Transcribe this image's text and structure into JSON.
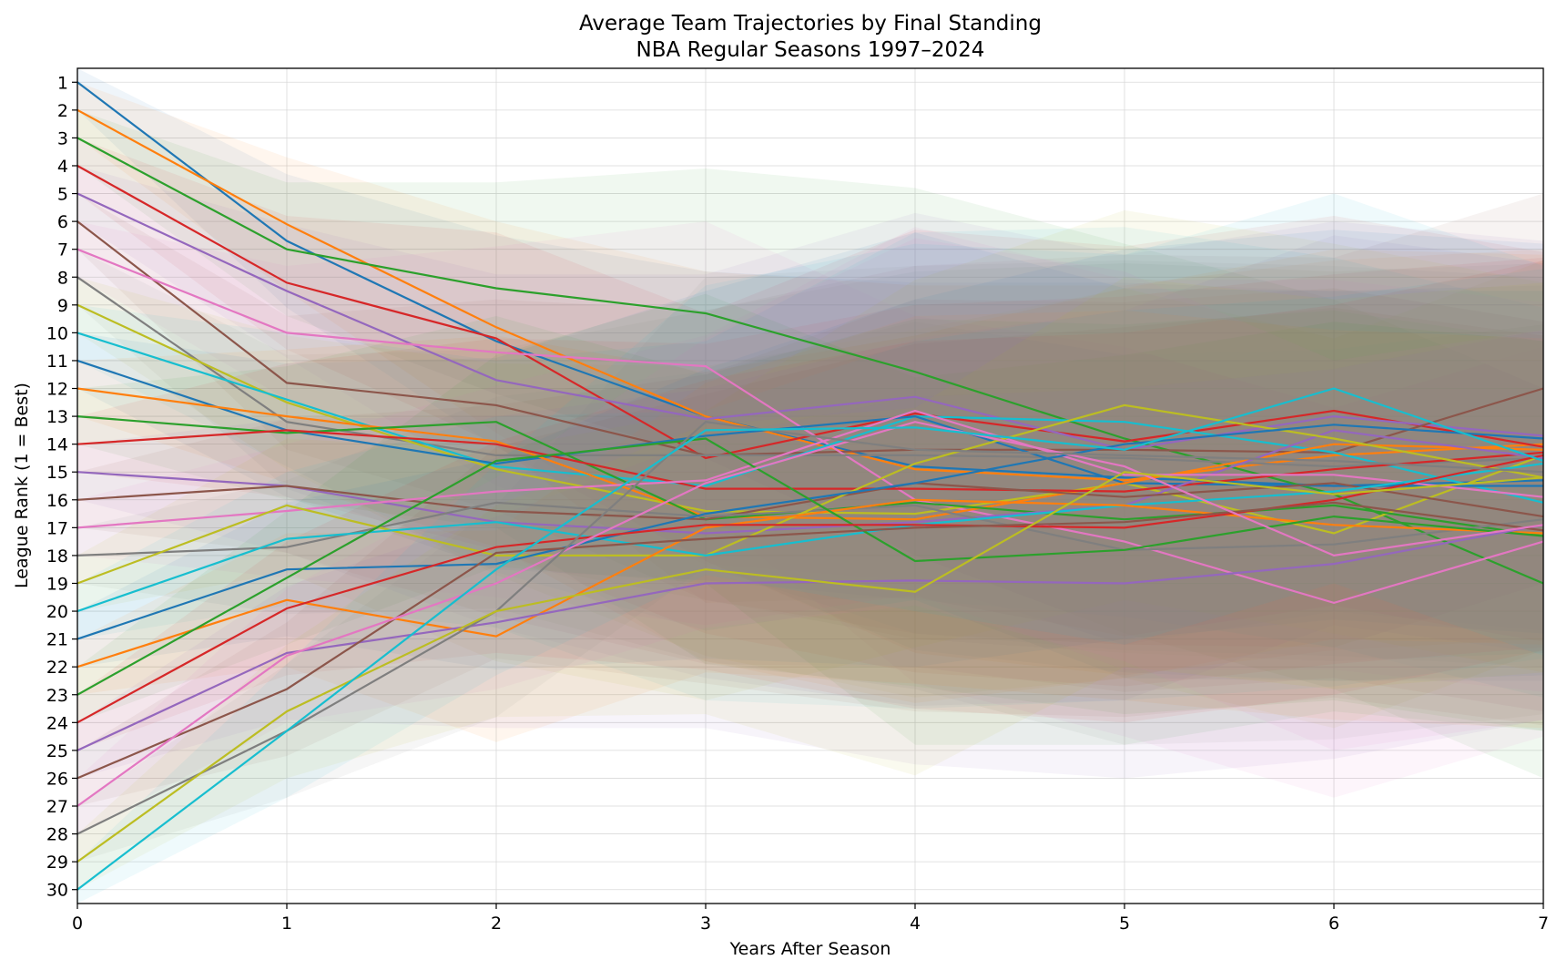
{
  "chart_data": {
    "type": "line",
    "title": "Average Team Trajectories by Final Standing",
    "subtitle": "NBA Regular Seasons 1997–2024",
    "xlabel": "Years After Season",
    "ylabel": "League Rank (1 = Best)",
    "xlim": [
      0,
      7
    ],
    "ylim": [
      30.5,
      0.5
    ],
    "y_inverted": true,
    "grid": true,
    "x": [
      0,
      1,
      2,
      3,
      4,
      5,
      6,
      7
    ],
    "x_ticks": [
      "0",
      "1",
      "2",
      "3",
      "4",
      "5",
      "6",
      "7"
    ],
    "y_ticks": [
      "1",
      "2",
      "3",
      "4",
      "5",
      "6",
      "7",
      "8",
      "9",
      "10",
      "11",
      "12",
      "13",
      "14",
      "15",
      "16",
      "17",
      "18",
      "19",
      "20",
      "21",
      "22",
      "23",
      "24",
      "25",
      "26",
      "27",
      "28",
      "29",
      "30"
    ],
    "band_opacity": 0.07,
    "series": [
      {
        "color": "#1f77b4",
        "values": [
          1,
          6.7,
          10.3,
          13.0,
          14.8,
          15.2,
          15.5,
          15.3
        ]
      },
      {
        "color": "#ff7f0e",
        "values": [
          2,
          6.1,
          9.8,
          13.0,
          14.9,
          15.3,
          14.4,
          14.0
        ]
      },
      {
        "color": "#2ca02c",
        "values": [
          3,
          7.0,
          8.4,
          9.3,
          11.4,
          13.8,
          15.8,
          19.0
        ]
      },
      {
        "color": "#d62728",
        "values": [
          4,
          8.2,
          10.2,
          14.5,
          12.9,
          13.9,
          12.8,
          14.1
        ]
      },
      {
        "color": "#9467bd",
        "values": [
          5,
          8.5,
          11.7,
          13.1,
          12.3,
          14.2,
          13.0,
          13.7
        ]
      },
      {
        "color": "#8c564b",
        "values": [
          6,
          11.8,
          12.6,
          14.4,
          14.2,
          14.2,
          14.3,
          12.0
        ]
      },
      {
        "color": "#e377c2",
        "values": [
          7,
          10.0,
          10.7,
          11.2,
          16.0,
          17.5,
          19.7,
          17.5
        ]
      },
      {
        "color": "#7f7f7f",
        "values": [
          8,
          13.2,
          14.4,
          14.4,
          14.4,
          14.5,
          14.8,
          14.5
        ]
      },
      {
        "color": "#bcbd22",
        "values": [
          9,
          12.5,
          14.9,
          16.4,
          16.5,
          15.4,
          17.2,
          14.4
        ]
      },
      {
        "color": "#17becf",
        "values": [
          10,
          12.4,
          14.8,
          15.5,
          13.0,
          13.2,
          14.3,
          16.1
        ]
      },
      {
        "color": "#1f77b4",
        "values": [
          11,
          13.5,
          14.7,
          13.7,
          13.0,
          15.4,
          15.5,
          15.5
        ]
      },
      {
        "color": "#ff7f0e",
        "values": [
          12,
          13.0,
          13.9,
          16.6,
          16.7,
          15.4,
          14.0,
          14.2
        ]
      },
      {
        "color": "#2ca02c",
        "values": [
          13,
          13.6,
          13.2,
          16.7,
          16.1,
          16.7,
          16.2,
          17.3
        ]
      },
      {
        "color": "#d62728",
        "values": [
          14,
          13.5,
          14.0,
          15.6,
          15.6,
          15.7,
          14.9,
          14.3
        ]
      },
      {
        "color": "#9467bd",
        "values": [
          15,
          15.5,
          16.8,
          17.2,
          16.8,
          16.2,
          13.5,
          14.5
        ]
      },
      {
        "color": "#8c564b",
        "values": [
          16,
          15.5,
          16.4,
          16.7,
          15.4,
          15.9,
          15.4,
          16.6
        ]
      },
      {
        "color": "#e377c2",
        "values": [
          17,
          16.4,
          15.7,
          15.3,
          12.8,
          15.1,
          15.1,
          15.9
        ]
      },
      {
        "color": "#7f7f7f",
        "values": [
          18,
          17.7,
          16.1,
          16.6,
          16.2,
          17.8,
          17.6,
          16.7
        ]
      },
      {
        "color": "#bcbd22",
        "values": [
          19,
          16.2,
          18.0,
          18.0,
          14.7,
          12.6,
          13.8,
          15.2
        ]
      },
      {
        "color": "#17becf",
        "values": [
          20,
          17.4,
          16.8,
          18.0,
          16.9,
          16.2,
          15.7,
          14.7
        ]
      },
      {
        "color": "#1f77b4",
        "values": [
          21,
          18.5,
          18.3,
          16.5,
          15.4,
          14.0,
          13.3,
          13.8
        ]
      },
      {
        "color": "#ff7f0e",
        "values": [
          22,
          19.6,
          20.9,
          17.0,
          16.0,
          16.2,
          16.9,
          17.2
        ]
      },
      {
        "color": "#2ca02c",
        "values": [
          23,
          18.8,
          14.6,
          13.8,
          18.2,
          17.8,
          16.6,
          17.3
        ]
      },
      {
        "color": "#d62728",
        "values": [
          24,
          19.9,
          17.7,
          16.9,
          16.9,
          17.0,
          16.0,
          14.4
        ]
      },
      {
        "color": "#9467bd",
        "values": [
          25,
          21.5,
          20.4,
          19.0,
          18.9,
          19.0,
          18.3,
          16.9
        ]
      },
      {
        "color": "#8c564b",
        "values": [
          26,
          22.8,
          17.9,
          17.4,
          17.0,
          16.8,
          16.1,
          17.1
        ]
      },
      {
        "color": "#e377c2",
        "values": [
          27,
          21.6,
          19.0,
          15.4,
          13.2,
          14.8,
          18.0,
          16.9
        ]
      },
      {
        "color": "#7f7f7f",
        "values": [
          28,
          24.3,
          20.0,
          13.2,
          14.2,
          14.4,
          14.6,
          15.0
        ]
      },
      {
        "color": "#bcbd22",
        "values": [
          29,
          23.6,
          20.0,
          18.5,
          19.3,
          15.0,
          15.8,
          15.2
        ]
      },
      {
        "color": "#17becf",
        "values": [
          30,
          24.3,
          18.5,
          13.5,
          13.4,
          14.2,
          12.0,
          14.6
        ]
      }
    ]
  }
}
